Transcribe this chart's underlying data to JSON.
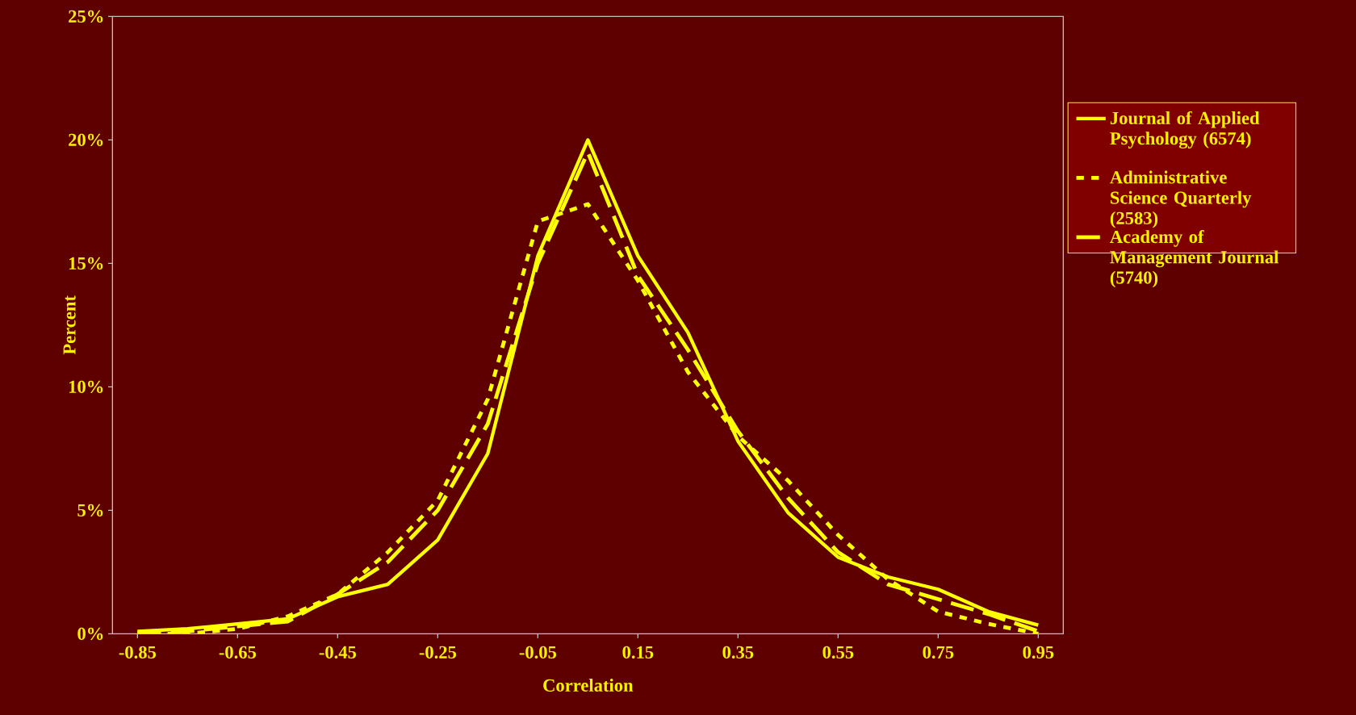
{
  "chart_data": {
    "type": "line",
    "xlabel": "Correlation",
    "ylabel": "Percent",
    "x": [
      -0.85,
      -0.75,
      -0.65,
      -0.55,
      -0.45,
      -0.35,
      -0.25,
      -0.15,
      -0.05,
      0.05,
      0.15,
      0.25,
      0.35,
      0.45,
      0.55,
      0.65,
      0.75,
      0.85,
      0.95
    ],
    "xlim": [
      -0.9,
      1.0
    ],
    "xticks": [
      -0.85,
      -0.65,
      -0.45,
      -0.25,
      -0.05,
      0.15,
      0.35,
      0.55,
      0.75,
      0.95
    ],
    "ylim": [
      0,
      25
    ],
    "yticks": [
      {
        "value": 0,
        "label": "0%"
      },
      {
        "value": 5,
        "label": "5%"
      },
      {
        "value": 10,
        "label": "10%"
      },
      {
        "value": 15,
        "label": "15%"
      },
      {
        "value": 20,
        "label": "20%"
      },
      {
        "value": 25,
        "label": "25%"
      }
    ],
    "legend": "right",
    "grid": false,
    "marker": "none",
    "series": [
      {
        "name": "Journal of Applied Psychology (6574)",
        "color": "#ffff00",
        "line_style": "solid",
        "values": [
          0.1,
          0.2,
          0.4,
          0.6,
          1.5,
          2.0,
          3.8,
          7.3,
          15.3,
          20.0,
          15.3,
          12.2,
          7.8,
          4.9,
          3.1,
          2.3,
          1.8,
          0.9,
          0.35
        ]
      },
      {
        "name": "Administrative Science Quarterly (2583)",
        "color": "#ffff00",
        "line_style": "dotted",
        "values": [
          0.0,
          0.0,
          0.2,
          0.7,
          1.6,
          3.3,
          5.4,
          9.5,
          16.7,
          17.4,
          14.3,
          10.6,
          8.0,
          6.2,
          4.0,
          2.2,
          0.9,
          0.4,
          0.0
        ]
      },
      {
        "name": "Academy of Management Journal (5740)",
        "color": "#ffff00",
        "line_style": "dashed",
        "values": [
          0.05,
          0.1,
          0.3,
          0.5,
          1.6,
          2.9,
          5.0,
          8.5,
          15.0,
          19.5,
          14.5,
          11.5,
          8.2,
          5.5,
          3.3,
          2.0,
          1.4,
          0.8,
          0.1
        ]
      }
    ]
  }
}
